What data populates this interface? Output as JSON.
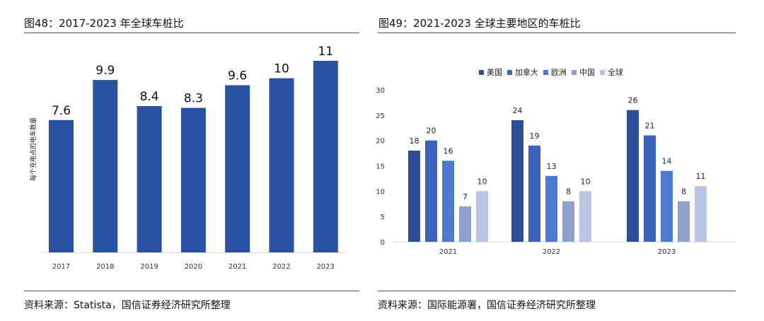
{
  "left": {
    "title": "图48：2017-2023 年全球车桩比",
    "source": "资料来源：Statista，国信证券经济研究所整理",
    "chart_data": {
      "type": "bar",
      "ylabel": "每个充电点的电车数量",
      "categories": [
        "2017",
        "2018",
        "2019",
        "2020",
        "2021",
        "2022",
        "2023"
      ],
      "values": [
        7.6,
        9.9,
        8.4,
        8.3,
        9.6,
        10,
        11
      ],
      "value_labels": [
        "7.6",
        "9.9",
        "8.4",
        "8.3",
        "9.6",
        "10",
        "11"
      ],
      "ylim": [
        0,
        11
      ],
      "colors": {
        "bar": "#2a52a2"
      }
    }
  },
  "right": {
    "title": "图49：2021-2023 全球主要地区的车桩比",
    "source": "资料来源：国际能源署，国信证券经济研究所整理",
    "chart_data": {
      "type": "bar",
      "categories": [
        "2021",
        "2022",
        "2023"
      ],
      "yticks": [
        "0",
        "5",
        "10",
        "15",
        "20",
        "25",
        "30"
      ],
      "ylim": [
        0,
        30
      ],
      "legend_position": "top",
      "series": [
        {
          "name": "美国",
          "values": [
            18,
            24,
            26
          ],
          "color": "#2d4d96"
        },
        {
          "name": "加拿大",
          "values": [
            20,
            19,
            21
          ],
          "color": "#3a63bd"
        },
        {
          "name": "欧洲",
          "values": [
            16,
            13,
            14
          ],
          "color": "#4d79d3"
        },
        {
          "name": "中国",
          "values": [
            7,
            8,
            8
          ],
          "color": "#8ea1cd"
        },
        {
          "name": "全球",
          "values": [
            10,
            10,
            11
          ],
          "color": "#b9c5e4"
        }
      ]
    }
  }
}
